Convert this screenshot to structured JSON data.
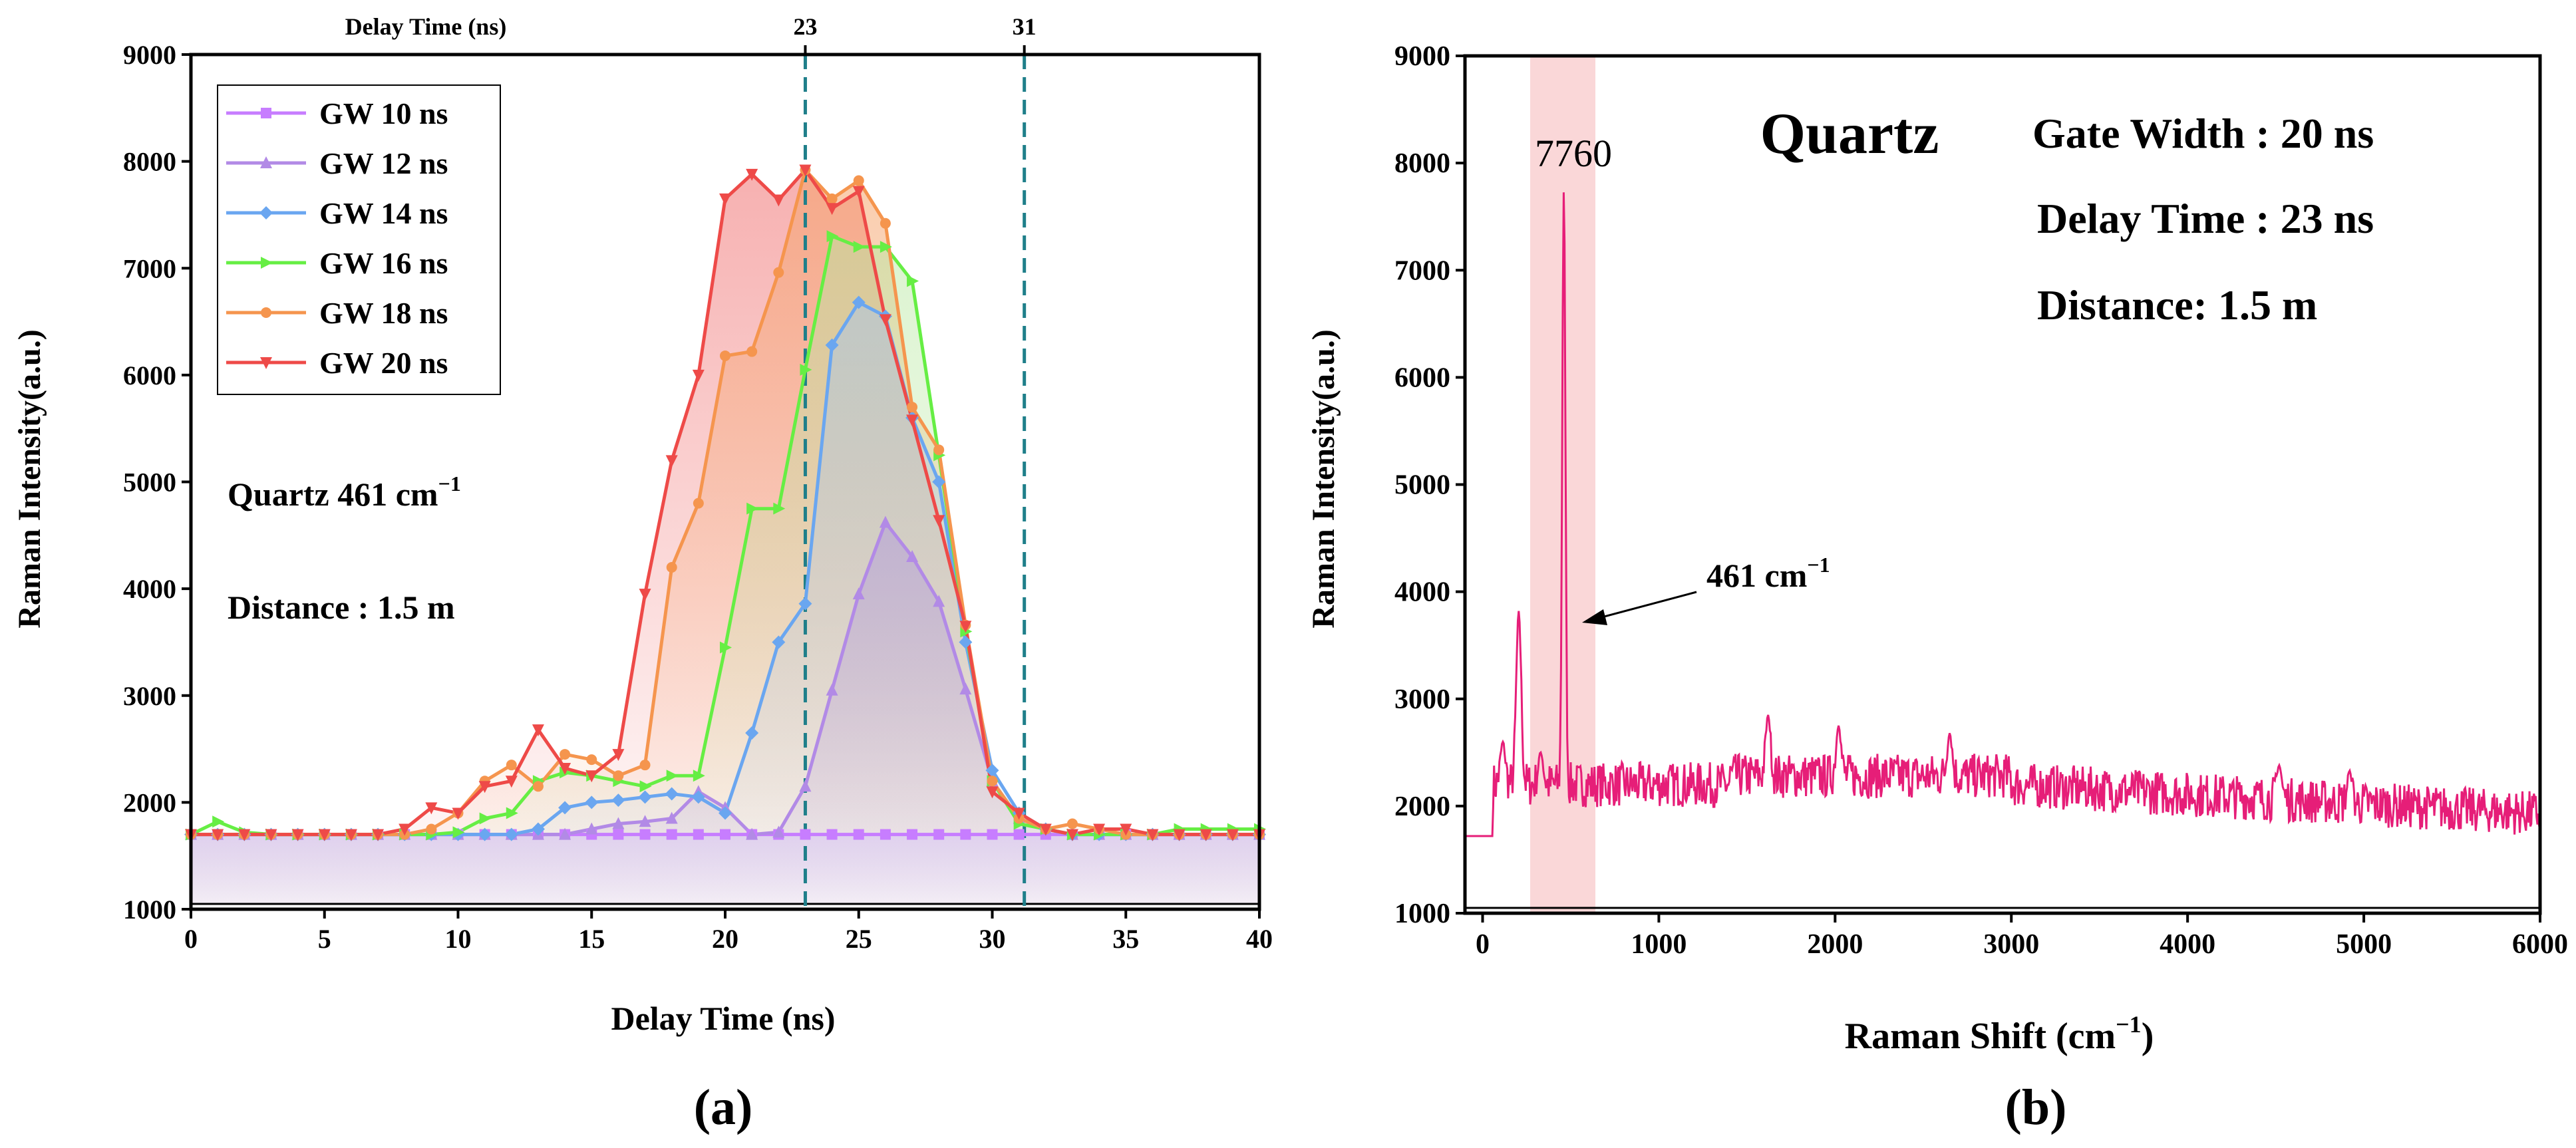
{
  "chart_data": [
    {
      "id": "a",
      "type": "line",
      "panel_label": "(a)",
      "xlabel": "Delay Time (ns)",
      "ylabel": "Raman Intensity(a.u.)",
      "top_axis_label": "Delay Time (ns)",
      "xlim": [
        0,
        40
      ],
      "ylim": [
        1000,
        9000
      ],
      "xticks": [
        0,
        5,
        10,
        15,
        20,
        25,
        30,
        35,
        40
      ],
      "yticks": [
        1000,
        2000,
        3000,
        4000,
        5000,
        6000,
        7000,
        8000,
        9000
      ],
      "vlines": [
        {
          "x": 23,
          "label": "23"
        },
        {
          "x": 31.2,
          "label": "31"
        }
      ],
      "annotation_sample": "Quartz 461 cm",
      "annotation_sample_sup": "−1",
      "annotation_distance": "Distance : 1.5 m",
      "legend_position": "top-left",
      "x": [
        0,
        1,
        2,
        3,
        4,
        5,
        6,
        7,
        8,
        9,
        10,
        11,
        12,
        13,
        14,
        15,
        16,
        17,
        18,
        19,
        20,
        21,
        22,
        23,
        24,
        25,
        26,
        27,
        28,
        29,
        30,
        31,
        32,
        33,
        34,
        35,
        36,
        37,
        38,
        39,
        40
      ],
      "series": [
        {
          "name": "GW 10 ns",
          "color": "#c77dff",
          "marker": "square",
          "values": [
            1700,
            1700,
            1700,
            1700,
            1700,
            1700,
            1700,
            1700,
            1700,
            1700,
            1700,
            1700,
            1700,
            1700,
            1700,
            1700,
            1700,
            1700,
            1700,
            1700,
            1700,
            1700,
            1700,
            1700,
            1700,
            1700,
            1700,
            1700,
            1700,
            1700,
            1700,
            1700,
            1700,
            1700,
            1700,
            1700,
            1700,
            1700,
            1700,
            1700,
            1700
          ]
        },
        {
          "name": "GW 12 ns",
          "color": "#b28ae6",
          "marker": "triangle-up",
          "values": [
            1700,
            1700,
            1700,
            1700,
            1700,
            1700,
            1700,
            1700,
            1700,
            1700,
            1700,
            1700,
            1700,
            1700,
            1700,
            1750,
            1800,
            1820,
            1850,
            2100,
            1950,
            1700,
            1720,
            2150,
            3050,
            3950,
            4620,
            4300,
            3880,
            3060,
            2200,
            1850,
            1750,
            1700,
            1700,
            1700,
            1700,
            1700,
            1700,
            1700,
            1700
          ]
        },
        {
          "name": "GW 14 ns",
          "color": "#6aa6f0",
          "marker": "diamond",
          "values": [
            1700,
            1700,
            1700,
            1700,
            1700,
            1700,
            1700,
            1700,
            1700,
            1700,
            1700,
            1700,
            1700,
            1750,
            1950,
            2000,
            2020,
            2050,
            2080,
            2050,
            1900,
            2650,
            3500,
            3860,
            6280,
            6680,
            6550,
            5600,
            5000,
            3500,
            2300,
            1900,
            1750,
            1700,
            1700,
            1700,
            1700,
            1700,
            1700,
            1700,
            1700
          ]
        },
        {
          "name": "GW 16 ns",
          "color": "#66ee44",
          "marker": "triangle-right",
          "values": [
            1700,
            1820,
            1720,
            1700,
            1700,
            1700,
            1700,
            1700,
            1700,
            1700,
            1720,
            1850,
            1900,
            2200,
            2280,
            2250,
            2200,
            2150,
            2250,
            2250,
            3450,
            4750,
            4750,
            6050,
            7300,
            7200,
            7200,
            6880,
            5250,
            3600,
            2200,
            1800,
            1750,
            1700,
            1700,
            1700,
            1700,
            1750,
            1750,
            1750,
            1750
          ]
        },
        {
          "name": "GW 18 ns",
          "color": "#f5954e",
          "marker": "circle",
          "values": [
            1700,
            1700,
            1700,
            1700,
            1700,
            1700,
            1700,
            1700,
            1700,
            1750,
            1900,
            2200,
            2350,
            2150,
            2450,
            2400,
            2250,
            2350,
            4200,
            4800,
            6180,
            6220,
            6960,
            7920,
            7650,
            7820,
            7420,
            5700,
            5300,
            3660,
            2200,
            1850,
            1750,
            1800,
            1750,
            1700,
            1700,
            1700,
            1700,
            1700,
            1700
          ]
        },
        {
          "name": "GW 20 ns",
          "color": "#ee4a48",
          "marker": "triangle-down",
          "values": [
            1700,
            1700,
            1700,
            1700,
            1700,
            1700,
            1700,
            1700,
            1750,
            1950,
            1900,
            2150,
            2200,
            2680,
            2320,
            2250,
            2450,
            3950,
            5200,
            6000,
            7650,
            7880,
            7640,
            7920,
            7560,
            7720,
            6520,
            5580,
            4640,
            3650,
            2100,
            1900,
            1750,
            1700,
            1750,
            1750,
            1700,
            1700,
            1700,
            1700,
            1700
          ]
        }
      ]
    },
    {
      "id": "b",
      "type": "line",
      "panel_label": "(b)",
      "xlabel": "Raman Shift (cm",
      "xlabel_sup": "−1",
      "xlabel_close": ")",
      "ylabel": "Raman Intensity(a.u.)",
      "xlim": [
        -100,
        6000
      ],
      "ylim": [
        1000,
        9000
      ],
      "xticks": [
        0,
        1000,
        2000,
        3000,
        4000,
        5000,
        6000
      ],
      "yticks": [
        1000,
        2000,
        3000,
        4000,
        5000,
        6000,
        7000,
        8000,
        9000
      ],
      "title_inset": "Quartz",
      "info_lines": [
        "Gate Width : 20 ns",
        "Delay Time : 23 ns",
        "Distance: 1.5 m"
      ],
      "peak_label": "7760",
      "peak_annotation": "461 cm",
      "peak_annotation_sup": "−1",
      "highlight_x": [
        270,
        640
      ],
      "highlight_color": "#f8c6c8",
      "line_color": "#e61e78",
      "baseline": 1720,
      "peaks": [
        {
          "x": 115,
          "y": 2600
        },
        {
          "x": 205,
          "y": 3820
        },
        {
          "x": 330,
          "y": 2500
        },
        {
          "x": 461,
          "y": 7760
        },
        {
          "x": 1620,
          "y": 2850
        },
        {
          "x": 2020,
          "y": 2750
        },
        {
          "x": 2650,
          "y": 2680
        },
        {
          "x": 4520,
          "y": 2380
        },
        {
          "x": 4920,
          "y": 2330
        }
      ]
    }
  ]
}
